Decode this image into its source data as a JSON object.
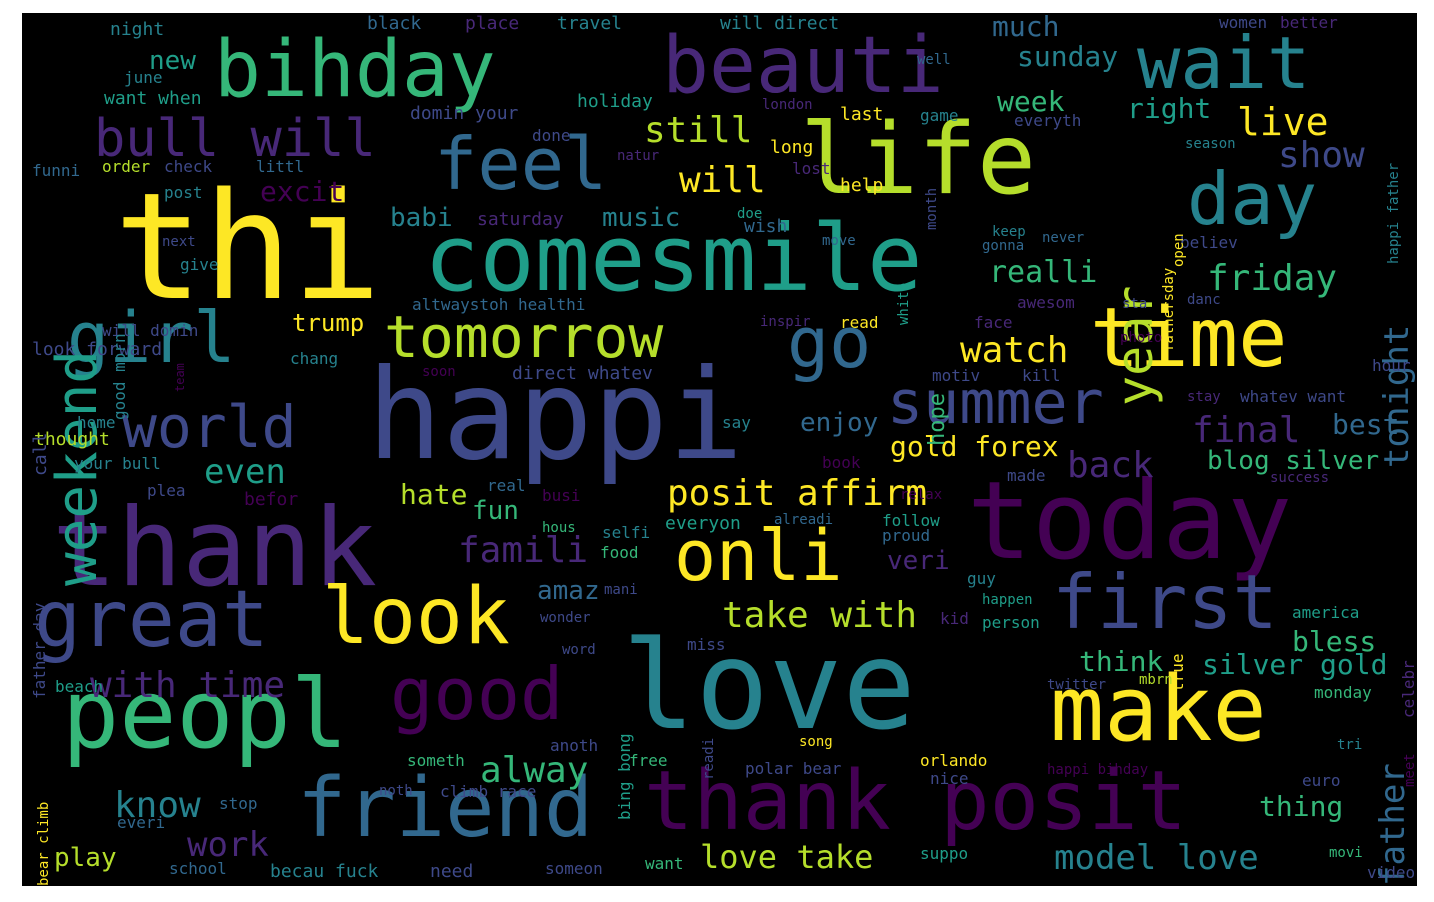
{
  "palette": {
    "c0": "#fde725",
    "c1": "#b5de2b",
    "c2": "#35b779",
    "c3": "#1f9e89",
    "c4": "#26828e",
    "c5": "#31688e",
    "c6": "#3e4989",
    "c7": "#482878",
    "c8": "#440154"
  },
  "words": [
    {
      "text": "love",
      "color": "c4"
    },
    {
      "text": "happi",
      "color": "c6"
    },
    {
      "text": "thi",
      "color": "c0"
    },
    {
      "text": "today",
      "color": "c8"
    },
    {
      "text": "thank",
      "color": "c7"
    },
    {
      "text": "life",
      "color": "c1"
    },
    {
      "text": "time",
      "color": "c0"
    },
    {
      "text": "comesmile",
      "color": "c3"
    },
    {
      "text": "thank posit",
      "color": "c8"
    },
    {
      "text": "peopl",
      "color": "c2"
    },
    {
      "text": "make",
      "color": "c0"
    },
    {
      "text": "bihday",
      "color": "c2"
    },
    {
      "text": "beauti",
      "color": "c7"
    },
    {
      "text": "wait",
      "color": "c4"
    },
    {
      "text": "feel",
      "color": "c5"
    },
    {
      "text": "great",
      "color": "c6"
    },
    {
      "text": "look",
      "color": "c0"
    },
    {
      "text": "friend",
      "color": "c5"
    },
    {
      "text": "good",
      "color": "c8"
    },
    {
      "text": "first",
      "color": "c6"
    },
    {
      "text": "onli",
      "color": "c0"
    },
    {
      "text": "day",
      "color": "c4"
    },
    {
      "text": "summer",
      "color": "c6"
    },
    {
      "text": "tomorrow",
      "color": "c1"
    },
    {
      "text": "girl",
      "color": "c4"
    },
    {
      "text": "go",
      "color": "c5"
    },
    {
      "text": "world",
      "color": "c6"
    },
    {
      "text": "weekend",
      "color": "c3"
    },
    {
      "text": "year",
      "color": "c1"
    },
    {
      "text": "bull will",
      "color": "c7"
    },
    {
      "text": "posit affirm",
      "color": "c0"
    },
    {
      "text": "take with",
      "color": "c1"
    },
    {
      "text": "with time",
      "color": "c7"
    },
    {
      "text": "still",
      "color": "c1"
    },
    {
      "text": "will",
      "color": "c0"
    },
    {
      "text": "live",
      "color": "c0"
    },
    {
      "text": "show",
      "color": "c6"
    },
    {
      "text": "friday",
      "color": "c2"
    },
    {
      "text": "tonight",
      "color": "c5"
    },
    {
      "text": "watch",
      "color": "c0"
    },
    {
      "text": "realli",
      "color": "c2"
    },
    {
      "text": "final",
      "color": "c7"
    },
    {
      "text": "gold forex",
      "color": "c0"
    },
    {
      "text": "back",
      "color": "c7"
    },
    {
      "text": "blog silver",
      "color": "c2"
    },
    {
      "text": "best",
      "color": "c5"
    },
    {
      "text": "famili",
      "color": "c7"
    },
    {
      "text": "even",
      "color": "c3"
    },
    {
      "text": "hate",
      "color": "c1"
    },
    {
      "text": "fun",
      "color": "c2"
    },
    {
      "text": "alway",
      "color": "c2"
    },
    {
      "text": "know",
      "color": "c4"
    },
    {
      "text": "work",
      "color": "c7"
    },
    {
      "text": "play",
      "color": "c1"
    },
    {
      "text": "love take",
      "color": "c1"
    },
    {
      "text": "model love",
      "color": "c4"
    },
    {
      "text": "father",
      "color": "c5"
    },
    {
      "text": "thing",
      "color": "c2"
    },
    {
      "text": "think",
      "color": "c2"
    },
    {
      "text": "silver gold",
      "color": "c3"
    },
    {
      "text": "bless",
      "color": "c2"
    },
    {
      "text": "excit",
      "color": "c8"
    },
    {
      "text": "babi",
      "color": "c4"
    },
    {
      "text": "music",
      "color": "c4"
    },
    {
      "text": "trump",
      "color": "c0"
    },
    {
      "text": "week",
      "color": "c2"
    },
    {
      "text": "right",
      "color": "c3"
    },
    {
      "text": "much",
      "color": "c5"
    },
    {
      "text": "sunday",
      "color": "c4"
    },
    {
      "text": "enjoy",
      "color": "c5"
    },
    {
      "text": "veri",
      "color": "c7"
    },
    {
      "text": "amaz",
      "color": "c5"
    },
    {
      "text": "new",
      "color": "c3"
    },
    {
      "text": "night",
      "color": "c4"
    },
    {
      "text": "black",
      "color": "c5"
    },
    {
      "text": "place",
      "color": "c7"
    },
    {
      "text": "travel",
      "color": "c4"
    },
    {
      "text": "will direct",
      "color": "c4"
    },
    {
      "text": "women",
      "color": "c6"
    },
    {
      "text": "better",
      "color": "c7"
    },
    {
      "text": "june",
      "color": "c4"
    },
    {
      "text": "want when",
      "color": "c3"
    },
    {
      "text": "holiday",
      "color": "c3"
    },
    {
      "text": "domin your",
      "color": "c6"
    },
    {
      "text": "done",
      "color": "c6"
    },
    {
      "text": "london",
      "color": "c7"
    },
    {
      "text": "last",
      "color": "c0"
    },
    {
      "text": "game",
      "color": "c4"
    },
    {
      "text": "well",
      "color": "c5"
    },
    {
      "text": "everyth",
      "color": "c6"
    },
    {
      "text": "season",
      "color": "c4"
    },
    {
      "text": "order",
      "color": "c1"
    },
    {
      "text": "check",
      "color": "c6"
    },
    {
      "text": "littl",
      "color": "c5"
    },
    {
      "text": "natur",
      "color": "c7"
    },
    {
      "text": "long",
      "color": "c0"
    },
    {
      "text": "lost",
      "color": "c7"
    },
    {
      "text": "help",
      "color": "c0"
    },
    {
      "text": "month",
      "color": "c6"
    },
    {
      "text": "post",
      "color": "c4"
    },
    {
      "text": "saturday",
      "color": "c7"
    },
    {
      "text": "doe",
      "color": "c3"
    },
    {
      "text": "wish",
      "color": "c5"
    },
    {
      "text": "move",
      "color": "c5"
    },
    {
      "text": "keep",
      "color": "c4"
    },
    {
      "text": "gonna",
      "color": "c5"
    },
    {
      "text": "never",
      "color": "c5"
    },
    {
      "text": "believ",
      "color": "c6"
    },
    {
      "text": "next",
      "color": "c6"
    },
    {
      "text": "give",
      "color": "c4"
    },
    {
      "text": "altwaystoh healthi",
      "color": "c5"
    },
    {
      "text": "sta",
      "color": "c6"
    },
    {
      "text": "awesom",
      "color": "c7"
    },
    {
      "text": "danc",
      "color": "c6"
    },
    {
      "text": "inspir",
      "color": "c7"
    },
    {
      "text": "read",
      "color": "c0"
    },
    {
      "text": "face",
      "color": "c7"
    },
    {
      "text": "photo",
      "color": "c8"
    },
    {
      "text": "chang",
      "color": "c4"
    },
    {
      "text": "soon",
      "color": "c8"
    },
    {
      "text": "direct whatev",
      "color": "c6"
    },
    {
      "text": "motiv",
      "color": "c6"
    },
    {
      "text": "kill",
      "color": "c6"
    },
    {
      "text": "hour",
      "color": "c6"
    },
    {
      "text": "stay",
      "color": "c7"
    },
    {
      "text": "whatev want",
      "color": "c6"
    },
    {
      "text": "home",
      "color": "c4"
    },
    {
      "text": "thought",
      "color": "c1"
    },
    {
      "text": "say",
      "color": "c4"
    },
    {
      "text": "book",
      "color": "c8"
    },
    {
      "text": "relax",
      "color": "c8"
    },
    {
      "text": "made",
      "color": "c6"
    },
    {
      "text": "success",
      "color": "c7"
    },
    {
      "text": "your bull",
      "color": "c4"
    },
    {
      "text": "plea",
      "color": "c6"
    },
    {
      "text": "befor",
      "color": "c8"
    },
    {
      "text": "real",
      "color": "c5"
    },
    {
      "text": "busi",
      "color": "c8"
    },
    {
      "text": "hous",
      "color": "c2"
    },
    {
      "text": "selfi",
      "color": "c4"
    },
    {
      "text": "everyon",
      "color": "c3"
    },
    {
      "text": "alreadi",
      "color": "c5"
    },
    {
      "text": "follow",
      "color": "c3"
    },
    {
      "text": "proud",
      "color": "c5"
    },
    {
      "text": "food",
      "color": "c2"
    },
    {
      "text": "guy",
      "color": "c4"
    },
    {
      "text": "mani",
      "color": "c6"
    },
    {
      "text": "happen",
      "color": "c3"
    },
    {
      "text": "america",
      "color": "c3"
    },
    {
      "text": "wonder",
      "color": "c6"
    },
    {
      "text": "kid",
      "color": "c7"
    },
    {
      "text": "person",
      "color": "c3"
    },
    {
      "text": "miss",
      "color": "c6"
    },
    {
      "text": "word",
      "color": "c6"
    },
    {
      "text": "twitter",
      "color": "c6"
    },
    {
      "text": "mbrn",
      "color": "c1"
    },
    {
      "text": "beach",
      "color": "c3"
    },
    {
      "text": "monday",
      "color": "c2"
    },
    {
      "text": "anoth",
      "color": "c6"
    },
    {
      "text": "song",
      "color": "c0"
    },
    {
      "text": "someth",
      "color": "c2"
    },
    {
      "text": "free",
      "color": "c2"
    },
    {
      "text": "polar bear",
      "color": "c6"
    },
    {
      "text": "orlando",
      "color": "c0"
    },
    {
      "text": "happi bihday",
      "color": "c8"
    },
    {
      "text": "nice",
      "color": "c6"
    },
    {
      "text": "euro",
      "color": "c6"
    },
    {
      "text": "noth",
      "color": "c6"
    },
    {
      "text": "climb race",
      "color": "c6"
    },
    {
      "text": "stop",
      "color": "c5"
    },
    {
      "text": "everi",
      "color": "c5"
    },
    {
      "text": "tri",
      "color": "c4"
    },
    {
      "text": "suppo",
      "color": "c3"
    },
    {
      "text": "movi",
      "color": "c2"
    },
    {
      "text": "video",
      "color": "c6"
    },
    {
      "text": "school",
      "color": "c5"
    },
    {
      "text": "becau fuck",
      "color": "c4"
    },
    {
      "text": "need",
      "color": "c6"
    },
    {
      "text": "someon",
      "color": "c6"
    },
    {
      "text": "want",
      "color": "c2"
    },
    {
      "text": "look forward",
      "color": "c6"
    },
    {
      "text": "funni",
      "color": "c5"
    },
    {
      "text": "will domin",
      "color": "c6"
    },
    {
      "text": "good morn",
      "color": "c4"
    },
    {
      "text": "team",
      "color": "c8"
    },
    {
      "text": "call",
      "color": "c6"
    },
    {
      "text": "father day",
      "color": "c6"
    },
    {
      "text": "bear climb",
      "color": "c0"
    },
    {
      "text": "bing bong",
      "color": "c3"
    },
    {
      "text": "readi",
      "color": "c6"
    },
    {
      "text": "hope",
      "color": "c2"
    },
    {
      "text": "white",
      "color": "c3"
    },
    {
      "text": "open",
      "color": "c0"
    },
    {
      "text": "fathersday",
      "color": "c0"
    },
    {
      "text": "happi father",
      "color": "c4"
    },
    {
      "text": "true",
      "color": "c0"
    },
    {
      "text": "celebr",
      "color": "c7"
    },
    {
      "text": "meet",
      "color": "c8"
    }
  ]
}
